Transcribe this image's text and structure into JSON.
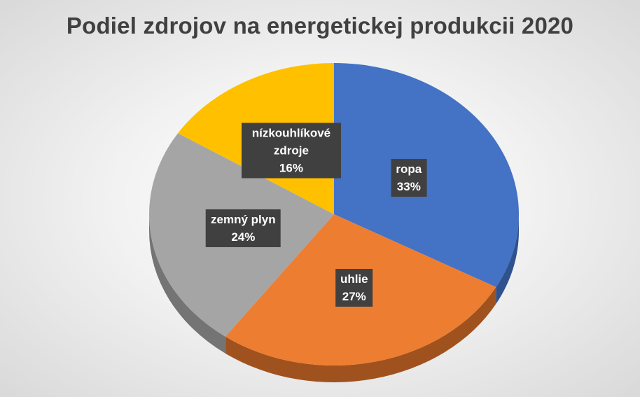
{
  "chart_data": {
    "type": "pie",
    "title": "Podiel zdrojov na energetickej produkcii 2020",
    "categories": [
      "ropa",
      "uhlie",
      "zemný plyn",
      "nízkouhlíkové zdroje"
    ],
    "values": [
      33,
      27,
      24,
      16
    ],
    "value_labels": [
      "33%",
      "27%",
      "24%",
      "16%"
    ],
    "colors": [
      "#4472C4",
      "#ED7D31",
      "#A5A5A5",
      "#FFC000"
    ],
    "side_colors": [
      "#2F528F",
      "#A0521E",
      "#747474",
      "#B38600"
    ],
    "label_background": "#404040",
    "style": "3d",
    "legend": "none"
  }
}
